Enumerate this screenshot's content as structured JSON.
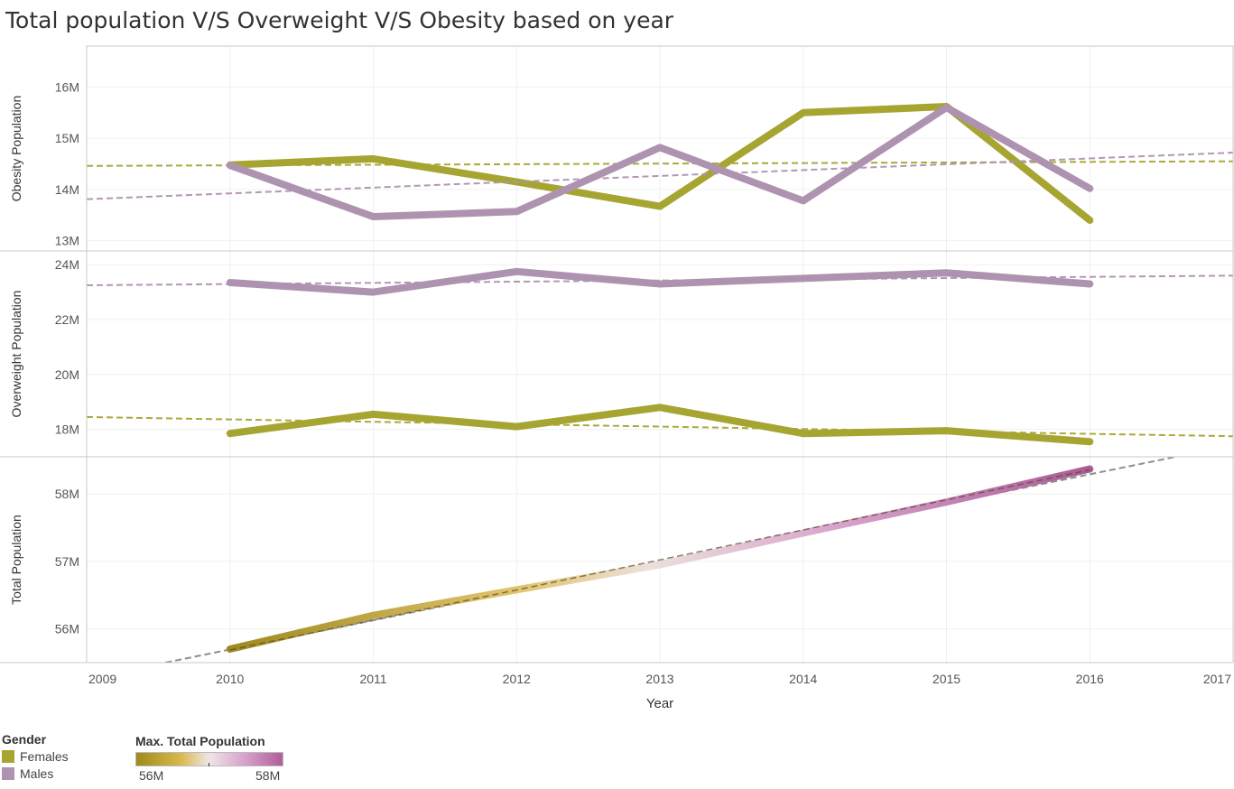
{
  "title": "Total population V/S Overweight V/S Obesity based on year",
  "chart_data": {
    "type": "line",
    "x": [
      2010,
      2011,
      2012,
      2013,
      2014,
      2015,
      2016
    ],
    "xlim": [
      2009,
      2017
    ],
    "x_ticks": [
      "2009",
      "2010",
      "2011",
      "2012",
      "2013",
      "2014",
      "2015",
      "2016",
      "2017"
    ],
    "xlabel": "Year",
    "grid": true,
    "panels": [
      {
        "id": "obesity",
        "ylabel": "Obesity Population",
        "ylim": [
          12.8,
          16.8
        ],
        "y_ticks": [
          {
            "v": 13,
            "label": "13M"
          },
          {
            "v": 14,
            "label": "14M"
          },
          {
            "v": 15,
            "label": "15M"
          },
          {
            "v": 16,
            "label": "16M"
          }
        ],
        "series": [
          {
            "name": "Females",
            "values": [
              14.48,
              14.6,
              14.15,
              13.67,
              15.5,
              15.62,
              13.4
            ],
            "trend": [
              14.46,
              14.55
            ]
          },
          {
            "name": "Males",
            "values": [
              14.47,
              13.47,
              13.57,
              14.82,
              13.78,
              15.6,
              14.02
            ],
            "trend": [
              13.81,
              14.72
            ]
          }
        ]
      },
      {
        "id": "overweight",
        "ylabel": "Overweight Population",
        "ylim": [
          17.0,
          24.5
        ],
        "y_ticks": [
          {
            "v": 18,
            "label": "18M"
          },
          {
            "v": 20,
            "label": "20M"
          },
          {
            "v": 22,
            "label": "22M"
          },
          {
            "v": 24,
            "label": "24M"
          }
        ],
        "series": [
          {
            "name": "Females",
            "values": [
              17.85,
              18.55,
              18.1,
              18.8,
              17.85,
              17.95,
              17.55
            ],
            "trend": [
              18.45,
              17.75
            ]
          },
          {
            "name": "Males",
            "values": [
              23.35,
              23.0,
              23.75,
              23.3,
              23.5,
              23.7,
              23.3
            ],
            "trend": [
              23.25,
              23.6
            ]
          }
        ]
      },
      {
        "id": "total",
        "ylabel": "Total Population",
        "ylim": [
          55.5,
          58.55
        ],
        "y_ticks": [
          {
            "v": 56,
            "label": "56M"
          },
          {
            "v": 57,
            "label": "57M"
          },
          {
            "v": 58,
            "label": "58M"
          }
        ],
        "series": [
          {
            "name": "Total",
            "values": [
              55.7,
              56.2,
              56.58,
              56.95,
              57.42,
              57.88,
              58.37
            ],
            "trend_points": [
              [
                2009.55,
                55.5
              ],
              [
                2016.6,
                58.55
              ]
            ]
          }
        ]
      }
    ],
    "legend": {
      "gender_title": "Gender",
      "items": [
        {
          "label": "Females",
          "color": "#a7a532"
        },
        {
          "label": "Males",
          "color": "#ae93b0"
        }
      ],
      "color_title": "Max. Total Population",
      "color_min": "56M",
      "color_max": "58M",
      "gradient_stops": [
        [
          55.7,
          "#9e8a1e"
        ],
        [
          56.6,
          "#e2c56e"
        ],
        [
          57.0,
          "#ece0dc"
        ],
        [
          57.6,
          "#d7a2cb"
        ],
        [
          58.37,
          "#a95c95"
        ]
      ]
    }
  }
}
